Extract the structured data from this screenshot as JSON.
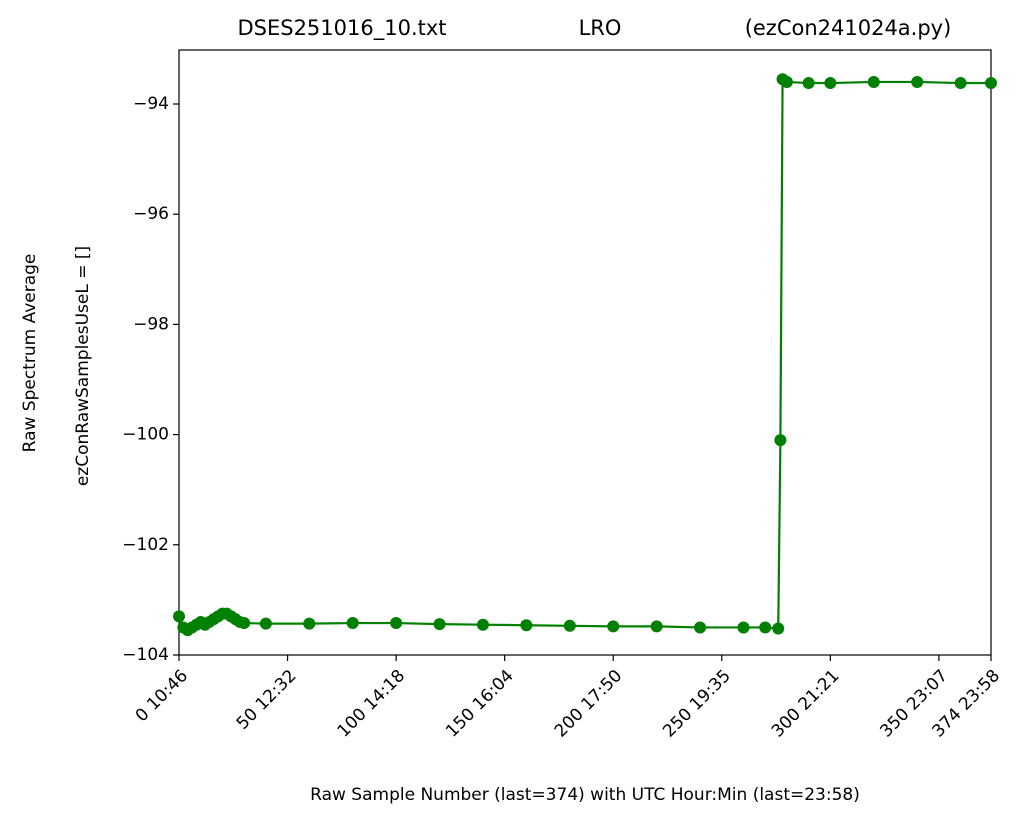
{
  "chart_data": {
    "type": "line",
    "title_left": "DSES251016_10.txt",
    "title": "LRO",
    "title_right": "(ezCon241024a.py)",
    "ylabel": [
      "Raw Spectrum Average",
      "ezConRawSamplesUseL = []"
    ],
    "xlabel": "Raw Sample Number (last=374) with UTC Hour:Min (last=23:58)",
    "x": [
      0,
      2,
      4,
      6,
      8,
      10,
      12,
      14,
      16,
      18,
      20,
      22,
      24,
      26,
      28,
      30,
      40,
      60,
      80,
      100,
      120,
      140,
      160,
      180,
      200,
      220,
      240,
      260,
      270,
      276,
      277,
      278,
      280,
      290,
      300,
      320,
      340,
      360,
      374
    ],
    "series": [
      {
        "color": "#008000",
        "values": [
          -103.3,
          -103.5,
          -103.55,
          -103.5,
          -103.45,
          -103.4,
          -103.45,
          -103.4,
          -103.35,
          -103.3,
          -103.25,
          -103.25,
          -103.3,
          -103.35,
          -103.4,
          -103.42,
          -103.43,
          -103.43,
          -103.42,
          -103.42,
          -103.44,
          -103.45,
          -103.46,
          -103.47,
          -103.48,
          -103.48,
          -103.5,
          -103.5,
          -103.5,
          -103.52,
          -100.1,
          -93.55,
          -93.6,
          -93.62,
          -93.62,
          -93.6,
          -93.6,
          -93.62,
          -93.62
        ]
      }
    ],
    "markers": true,
    "xlim": [
      0,
      374
    ],
    "xticks": [
      {
        "value": 0,
        "label": "0  10:46"
      },
      {
        "value": 50,
        "label": "50  12:32"
      },
      {
        "value": 100,
        "label": "100  14:18"
      },
      {
        "value": 150,
        "label": "150  16:04"
      },
      {
        "value": 200,
        "label": "200  17:50"
      },
      {
        "value": 250,
        "label": "250  19:35"
      },
      {
        "value": 300,
        "label": "300  21:21"
      },
      {
        "value": 350,
        "label": "350  23:07"
      },
      {
        "value": 374,
        "label": "374  23:58"
      }
    ],
    "ylim": [
      -104,
      -93.02
    ],
    "yticks": [
      {
        "value": -104,
        "label": "−104"
      },
      {
        "value": -102,
        "label": "−102"
      },
      {
        "value": -100,
        "label": "−100"
      },
      {
        "value": -98,
        "label": "−98"
      },
      {
        "value": -96,
        "label": "−96"
      },
      {
        "value": -94,
        "label": "−94"
      }
    ]
  }
}
